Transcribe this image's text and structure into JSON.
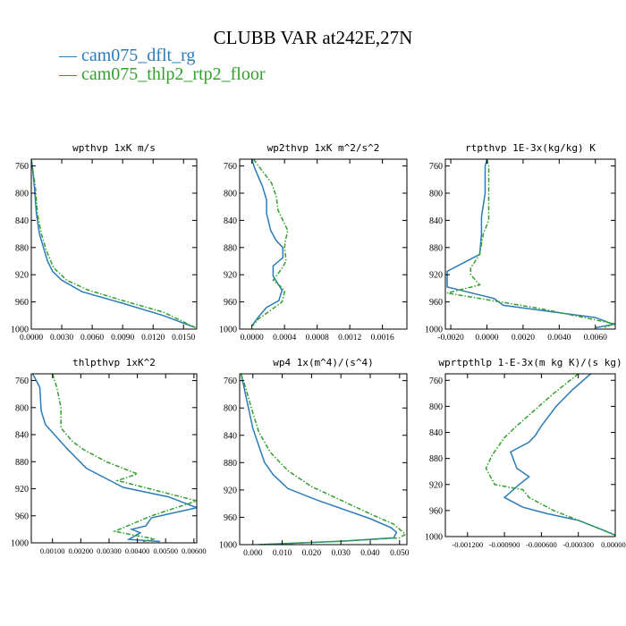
{
  "figure": {
    "title": "CLUBB VAR at242E,27N",
    "legend": [
      {
        "label": "— cam075_dflt_rg",
        "color": "#2b7bba"
      },
      {
        "label": "— cam075_thlp2_rtp2_floor",
        "color": "#33a02c"
      }
    ]
  },
  "chart_data": [
    {
      "type": "line",
      "title": "wpthvp  1xK m/s",
      "y_axis": "pressure",
      "ylim": [
        1000,
        750
      ],
      "y_ticks": [
        760,
        800,
        840,
        880,
        920,
        960,
        1000
      ],
      "xlim": [
        0.0,
        0.0163
      ],
      "x_ticks": [
        0.0,
        0.003,
        0.006,
        0.009,
        0.012,
        0.015
      ],
      "x_tick_labels": [
        "0.0000",
        "0.0030",
        "0.0060",
        "0.0090",
        "0.0120",
        "0.0150"
      ],
      "series": [
        {
          "name": "cam075_dflt_rg",
          "color": "#2b7bba",
          "dashed": false,
          "x": [
            0.0,
            0.0001,
            0.0003,
            0.0005,
            0.0008,
            0.0012,
            0.0016,
            0.0021,
            0.003,
            0.005,
            0.009,
            0.013,
            0.016
          ],
          "y": [
            750,
            760,
            790,
            830,
            860,
            880,
            900,
            915,
            928,
            945,
            962,
            980,
            997
          ]
        },
        {
          "name": "cam075_thlp2_rtp2_floor",
          "color": "#33a02c",
          "dashed": true,
          "x": [
            0.0,
            0.0001,
            0.0004,
            0.0006,
            0.001,
            0.0015,
            0.0022,
            0.0035,
            0.0055,
            0.009,
            0.013,
            0.0162
          ],
          "y": [
            750,
            760,
            790,
            830,
            860,
            885,
            910,
            928,
            942,
            958,
            975,
            998
          ]
        }
      ]
    },
    {
      "type": "line",
      "title": "wp2thvp  1xK m^2/s^2",
      "y_axis": "pressure",
      "ylim": [
        1000,
        750
      ],
      "y_ticks": [
        760,
        800,
        840,
        880,
        920,
        960,
        1000
      ],
      "xlim": [
        -0.00015,
        0.0019
      ],
      "x_ticks": [
        0.0,
        0.0004,
        0.0008,
        0.0012,
        0.0016
      ],
      "x_tick_labels": [
        "0.0000",
        "0.0004",
        "0.0008",
        "0.0012",
        "0.0016"
      ],
      "series": [
        {
          "name": "cam075_dflt_rg",
          "color": "#2b7bba",
          "dashed": false,
          "x": [
            0.0,
            3e-05,
            0.00013,
            0.00018,
            0.00018,
            0.00023,
            0.0003,
            0.00038,
            0.00038,
            0.00026,
            0.00026,
            0.00037,
            0.00033,
            0.00018,
            8e-05,
            0.0
          ],
          "y": [
            750,
            762,
            790,
            810,
            830,
            855,
            870,
            880,
            895,
            907,
            922,
            943,
            958,
            968,
            982,
            995
          ]
        },
        {
          "name": "cam075_thlp2_rtp2_floor",
          "color": "#33a02c",
          "dashed": true,
          "x": [
            2e-05,
            0.0001,
            0.00024,
            0.0003,
            0.00032,
            0.0004,
            0.00044,
            0.00041,
            0.0004,
            0.00042,
            0.00036,
            0.00026,
            0.00036,
            0.0004,
            0.00037,
            0.0002,
            8e-05,
            1e-05
          ],
          "y": [
            750,
            763,
            785,
            805,
            825,
            845,
            855,
            870,
            880,
            900,
            912,
            928,
            938,
            945,
            960,
            975,
            985,
            995
          ]
        }
      ]
    },
    {
      "type": "line",
      "title": "rtpthvp  1E-3x(kg/kg) K",
      "y_axis": "pressure",
      "ylim": [
        1000,
        750
      ],
      "y_ticks": [
        760,
        800,
        840,
        880,
        920,
        960,
        1000
      ],
      "xlim": [
        -0.0023,
        0.0071
      ],
      "x_ticks": [
        -0.002,
        0.0,
        0.002,
        0.004,
        0.006
      ],
      "x_tick_labels": [
        "-0.0020",
        "0.0000",
        "0.0020",
        "0.0040",
        "0.0060"
      ],
      "series": [
        {
          "name": "cam075_dflt_rg",
          "color": "#2b7bba",
          "dashed": false,
          "x": [
            0.0,
            -0.0001,
            -0.0001,
            -0.0003,
            -0.0003,
            -0.0004,
            -0.0022,
            -0.0022,
            0.0004,
            0.0009,
            0.006,
            0.007,
            0.006
          ],
          "y": [
            750,
            760,
            800,
            835,
            860,
            890,
            915,
            938,
            955,
            965,
            983,
            993,
            998
          ]
        },
        {
          "name": "cam075_thlp2_rtp2_floor",
          "color": "#33a02c",
          "dashed": true,
          "x": [
            0.0,
            0.0001,
            0.0001,
            0.0001,
            -0.0002,
            -0.0004,
            -0.0009,
            -0.0009,
            -0.0004,
            -0.0022,
            0.003,
            0.007,
            0.0065
          ],
          "y": [
            750,
            760,
            800,
            840,
            860,
            890,
            910,
            920,
            935,
            947,
            970,
            992,
            998
          ]
        }
      ]
    },
    {
      "type": "line",
      "title": "thlpthvp  1xK^2",
      "y_axis": "pressure",
      "ylim": [
        1000,
        750
      ],
      "y_ticks": [
        760,
        800,
        840,
        880,
        920,
        960,
        1000
      ],
      "xlim": [
        0.00025,
        0.0061
      ],
      "x_ticks": [
        0.001,
        0.002,
        0.003,
        0.004,
        0.005,
        0.006
      ],
      "x_tick_labels": [
        "0.00100",
        "0.00200",
        "0.00300",
        "0.00400",
        "0.00500",
        "0.00600"
      ],
      "series": [
        {
          "name": "cam075_dflt_rg",
          "color": "#2b7bba",
          "dashed": false,
          "x": [
            0.0003,
            0.00055,
            0.0006,
            0.00075,
            0.0015,
            0.0022,
            0.0035,
            0.0051,
            0.0061,
            0.0045,
            0.0043,
            0.0038,
            0.0041,
            0.0037,
            0.0048
          ],
          "y": [
            750,
            770,
            805,
            825,
            860,
            890,
            918,
            932,
            948,
            963,
            975,
            980,
            985,
            995,
            998
          ]
        },
        {
          "name": "cam075_thlp2_rtp2_floor",
          "color": "#33a02c",
          "dashed": true,
          "x": [
            0.001,
            0.00115,
            0.0013,
            0.0013,
            0.0017,
            0.0021,
            0.0029,
            0.004,
            0.0033,
            0.0061,
            0.0045,
            0.0032,
            0.0038,
            0.0046,
            0.0042
          ],
          "y": [
            750,
            770,
            800,
            830,
            850,
            862,
            880,
            898,
            908,
            938,
            960,
            983,
            988,
            994,
            998
          ]
        }
      ]
    },
    {
      "type": "line",
      "title": "wp4  1x(m^4)/(s^4)",
      "y_axis": "pressure",
      "ylim": [
        1000,
        750
      ],
      "y_ticks": [
        760,
        800,
        840,
        880,
        920,
        960,
        1000
      ],
      "xlim": [
        -0.0045,
        0.0525
      ],
      "x_ticks": [
        0.0,
        0.01,
        0.02,
        0.03,
        0.04,
        0.05
      ],
      "x_tick_labels": [
        "0.000",
        "0.010",
        "0.020",
        "0.030",
        "0.040",
        "0.050"
      ],
      "series": [
        {
          "name": "cam075_dflt_rg",
          "color": "#2b7bba",
          "dashed": false,
          "x": [
            -0.004,
            -0.003,
            -0.0015,
            0.0,
            0.002,
            0.004,
            0.007,
            0.012,
            0.022,
            0.032,
            0.04,
            0.047,
            0.049,
            0.048,
            0.03,
            0.002
          ],
          "y": [
            750,
            770,
            800,
            830,
            855,
            880,
            898,
            918,
            935,
            950,
            962,
            975,
            982,
            990,
            995,
            1000
          ]
        },
        {
          "name": "cam075_thlp2_rtp2_floor",
          "color": "#33a02c",
          "dashed": true,
          "x": [
            -0.004,
            -0.0025,
            -0.0005,
            0.002,
            0.006,
            0.012,
            0.02,
            0.03,
            0.04,
            0.048,
            0.052,
            0.05,
            0.03,
            0.002
          ],
          "y": [
            750,
            770,
            800,
            835,
            865,
            892,
            915,
            935,
            955,
            970,
            985,
            990,
            995,
            1000
          ]
        }
      ]
    },
    {
      "type": "line",
      "title": "wprtpthlp  1-E-3x(m kg K)/(s kg)",
      "y_axis": "pressure",
      "ylim": [
        1000,
        750
      ],
      "y_ticks": [
        760,
        800,
        840,
        880,
        920,
        960,
        1000
      ],
      "xlim": [
        -0.00138,
        0.0
      ],
      "x_ticks": [
        -0.0012,
        -0.0009,
        -0.0006,
        -0.0003,
        0.0
      ],
      "x_tick_labels": [
        "-0.001200",
        "-0.000900",
        "-0.000600",
        "-0.000300",
        "0.000000"
      ],
      "series": [
        {
          "name": "cam075_dflt_rg",
          "color": "#2b7bba",
          "dashed": false,
          "x": [
            -0.0002,
            -0.00035,
            -0.00048,
            -0.0006,
            -0.00065,
            -0.0007,
            -0.00085,
            -0.0008,
            -0.0007,
            -0.00078,
            -0.0009,
            -0.00075,
            -0.00055,
            -0.0003,
            -0.0001,
            0.0
          ],
          "y": [
            750,
            775,
            800,
            830,
            845,
            855,
            870,
            895,
            908,
            920,
            940,
            955,
            965,
            975,
            990,
            998
          ]
        },
        {
          "name": "cam075_thlp2_rtp2_floor",
          "color": "#33a02c",
          "dashed": true,
          "x": [
            -0.0003,
            -0.0005,
            -0.00065,
            -0.0008,
            -0.0009,
            -0.001,
            -0.00105,
            -0.00098,
            -0.00075,
            -0.0007,
            -0.0005,
            -0.0003,
            -0.0001,
            0.0
          ],
          "y": [
            750,
            780,
            805,
            830,
            848,
            875,
            895,
            920,
            928,
            940,
            960,
            975,
            990,
            998
          ]
        }
      ]
    }
  ]
}
